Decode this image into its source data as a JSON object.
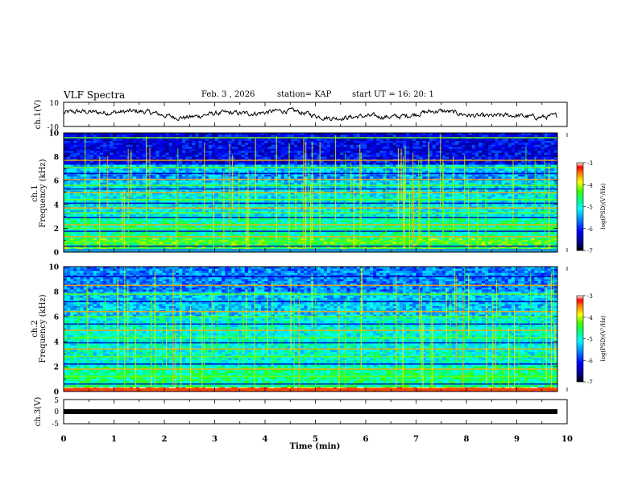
{
  "header": {
    "title": "VLF Spectra",
    "date": "Feb. 3  , 2026",
    "station": "station= KAP",
    "start": "start  UT  =   16: 20: 1"
  },
  "colors": {
    "scale": [
      "#000080",
      "#0000ff",
      "#0090ff",
      "#00ffff",
      "#00ff90",
      "#40ff00",
      "#ffff00",
      "#ff8000",
      "#ff0000",
      "#ffffff"
    ],
    "trace": "#000000"
  },
  "chart_data": [
    {
      "type": "line",
      "panel": "ch1-voltage",
      "ylabel": "ch.1(V)",
      "ylim": [
        -10,
        10
      ],
      "yticks": [
        "10",
        "-10"
      ],
      "xlim": [
        0,
        10
      ],
      "series": [
        {
          "name": "ch.1",
          "description": "noisy waveform around 0 V, approx -5 to +7 V",
          "values_range": [
            -5,
            7
          ]
        }
      ]
    },
    {
      "type": "heatmap",
      "panel": "ch1-spectrogram",
      "ylabel_top": "ch.1",
      "ylabel": "Frequency (kHz)",
      "ylim": [
        0,
        10
      ],
      "yticks": [
        "0",
        "2",
        "4",
        "6",
        "8",
        "10"
      ],
      "xlim": [
        0,
        10
      ],
      "colorbar": {
        "label": "log(PSD)(V²/Hz)",
        "range": [
          -7,
          -3
        ],
        "ticks": [
          "-3",
          "-4",
          "-5",
          "-6",
          "-7"
        ]
      },
      "bands": [
        {
          "from": 0,
          "to": 1.2,
          "level": -4.4
        },
        {
          "from": 1.2,
          "to": 3,
          "level": -4.8
        },
        {
          "from": 3,
          "to": 5,
          "level": -5.1
        },
        {
          "from": 5,
          "to": 6,
          "level": -5.2
        },
        {
          "from": 6,
          "to": 6.6,
          "level": -5.5
        },
        {
          "from": 6.6,
          "to": 7.4,
          "level": -5.3
        },
        {
          "from": 7.4,
          "to": 10,
          "level": -6.2
        }
      ],
      "lines_khz": [
        0.2,
        0.5,
        0.9,
        1.3,
        1.75,
        2.0,
        2.3,
        2.9,
        3.3,
        3.7,
        4.1,
        4.4,
        5.0,
        5.3,
        5.6,
        6.1,
        6.6,
        7.1,
        7.7,
        8.6,
        9.6
      ]
    },
    {
      "type": "heatmap",
      "panel": "ch2-spectrogram",
      "ylabel_top": "ch.2",
      "ylabel": "Frequency (kHz)",
      "ylim": [
        0,
        10
      ],
      "yticks": [
        "0",
        "2",
        "4",
        "6",
        "8",
        "10"
      ],
      "xlim": [
        0,
        10
      ],
      "colorbar": {
        "label": "log(PSD)(V²/Hz)",
        "range": [
          -7,
          -3
        ],
        "ticks": [
          "-3",
          "-4",
          "-5",
          "-6",
          "-7"
        ]
      },
      "bands": [
        {
          "from": 0,
          "to": 0.3,
          "level": -3.4
        },
        {
          "from": 0.3,
          "to": 2,
          "level": -4.7
        },
        {
          "from": 2,
          "to": 4,
          "level": -5.0
        },
        {
          "from": 4,
          "to": 6,
          "level": -5.0
        },
        {
          "from": 6,
          "to": 8,
          "level": -5.3
        },
        {
          "from": 8,
          "to": 10,
          "level": -5.6
        }
      ],
      "lines_khz": [
        0.2,
        0.6,
        1.2,
        1.8,
        2.2,
        2.8,
        3.4,
        3.9,
        4.3,
        4.9,
        5.4,
        6.0,
        6.4,
        7.2,
        7.8,
        8.5,
        9.2
      ]
    },
    {
      "type": "line",
      "panel": "ch3-voltage",
      "ylabel": "ch.3(V)",
      "ylim": [
        -5,
        5
      ],
      "yticks": [
        "5",
        "0",
        "-5"
      ],
      "xlim": [
        0,
        9.8
      ],
      "series": [
        {
          "name": "ch.3",
          "description": "flat thick trace near 0 V",
          "values_range": [
            -0.5,
            0.5
          ]
        }
      ]
    }
  ],
  "x_axis": {
    "label": "Time  (min)",
    "range": [
      0,
      10
    ],
    "ticks": [
      "0",
      "1",
      "2",
      "3",
      "4",
      "5",
      "6",
      "7",
      "8",
      "9",
      "10"
    ]
  }
}
